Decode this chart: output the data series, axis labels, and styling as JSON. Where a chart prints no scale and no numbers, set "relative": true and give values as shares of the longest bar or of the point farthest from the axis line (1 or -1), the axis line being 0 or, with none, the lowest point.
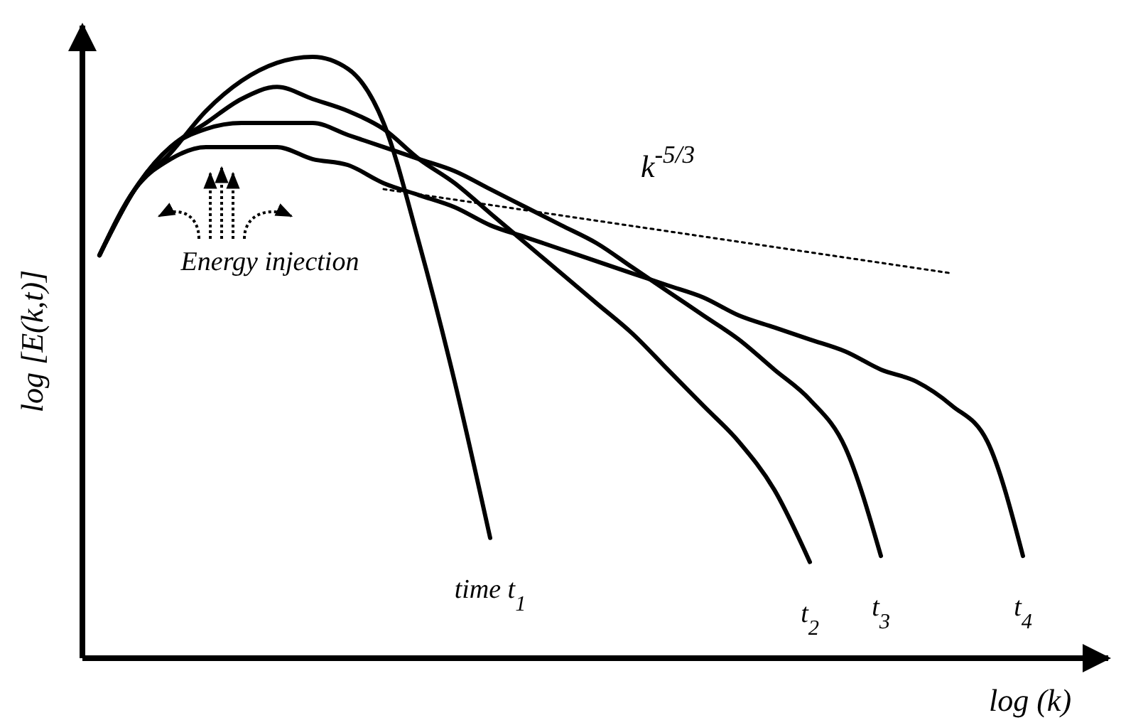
{
  "chart_data": {
    "type": "line",
    "relative": true,
    "xlabel": "log (k)",
    "ylabel": "log [E(k,t)]",
    "annotations": [
      "Energy injection"
    ],
    "categories": [
      null,
      null,
      null,
      null,
      null,
      null,
      null,
      null,
      null,
      null,
      null,
      null,
      null,
      null,
      null,
      null,
      null,
      null,
      null,
      null,
      null,
      null,
      null,
      null,
      null,
      null,
      null
    ],
    "series": [
      {
        "name": "time t$_{1}$",
        "color": "#000000",
        "values": [
          0.67,
          0.78,
          0.84,
          0.91,
          0.96,
          0.99,
          1,
          0.98,
          0.89,
          0.69,
          0.46,
          0.2,
          null,
          null,
          null,
          null,
          null,
          null,
          null,
          null,
          null,
          null,
          null,
          null,
          null,
          null,
          null
        ]
      },
      {
        "name": "t$_{2}$",
        "color": "#000000",
        "values": [
          0.67,
          0.78,
          0.85,
          0.89,
          0.93,
          0.95,
          0.93,
          0.91,
          0.88,
          0.83,
          0.79,
          0.74,
          0.69,
          0.64,
          0.59,
          0.54,
          0.48,
          0.42,
          0.36,
          0.28,
          0.16,
          null,
          null,
          null,
          null,
          null,
          null
        ]
      },
      {
        "name": "t$_{3}$",
        "color": "#000000",
        "values": [
          0.67,
          0.78,
          0.85,
          0.88,
          0.89,
          0.89,
          0.89,
          0.87,
          0.85,
          0.83,
          0.81,
          0.78,
          0.75,
          0.72,
          0.69,
          0.65,
          0.61,
          0.57,
          0.53,
          0.48,
          0.43,
          0.35,
          0.17,
          null,
          null,
          null,
          null
        ]
      },
      {
        "name": "t$_{4}$",
        "color": "#000000",
        "values": [
          0.67,
          0.78,
          0.83,
          0.85,
          0.85,
          0.85,
          0.83,
          0.82,
          0.79,
          0.77,
          0.75,
          0.72,
          0.7,
          0.68,
          0.66,
          0.64,
          0.62,
          0.6,
          0.57,
          0.55,
          0.53,
          0.51,
          0.48,
          0.46,
          0.42,
          0.36,
          0.17
        ]
      },
      {
        "name": "k$^{-5/3}$",
        "color": "#000000",
        "line_style": "dotted",
        "values": [
          null,
          null,
          null,
          null,
          null,
          null,
          null,
          null,
          0.78,
          null,
          null,
          null,
          null,
          null,
          null,
          null,
          null,
          null,
          null,
          null,
          null,
          null,
          null,
          null,
          0.64,
          null,
          null
        ]
      }
    ]
  }
}
